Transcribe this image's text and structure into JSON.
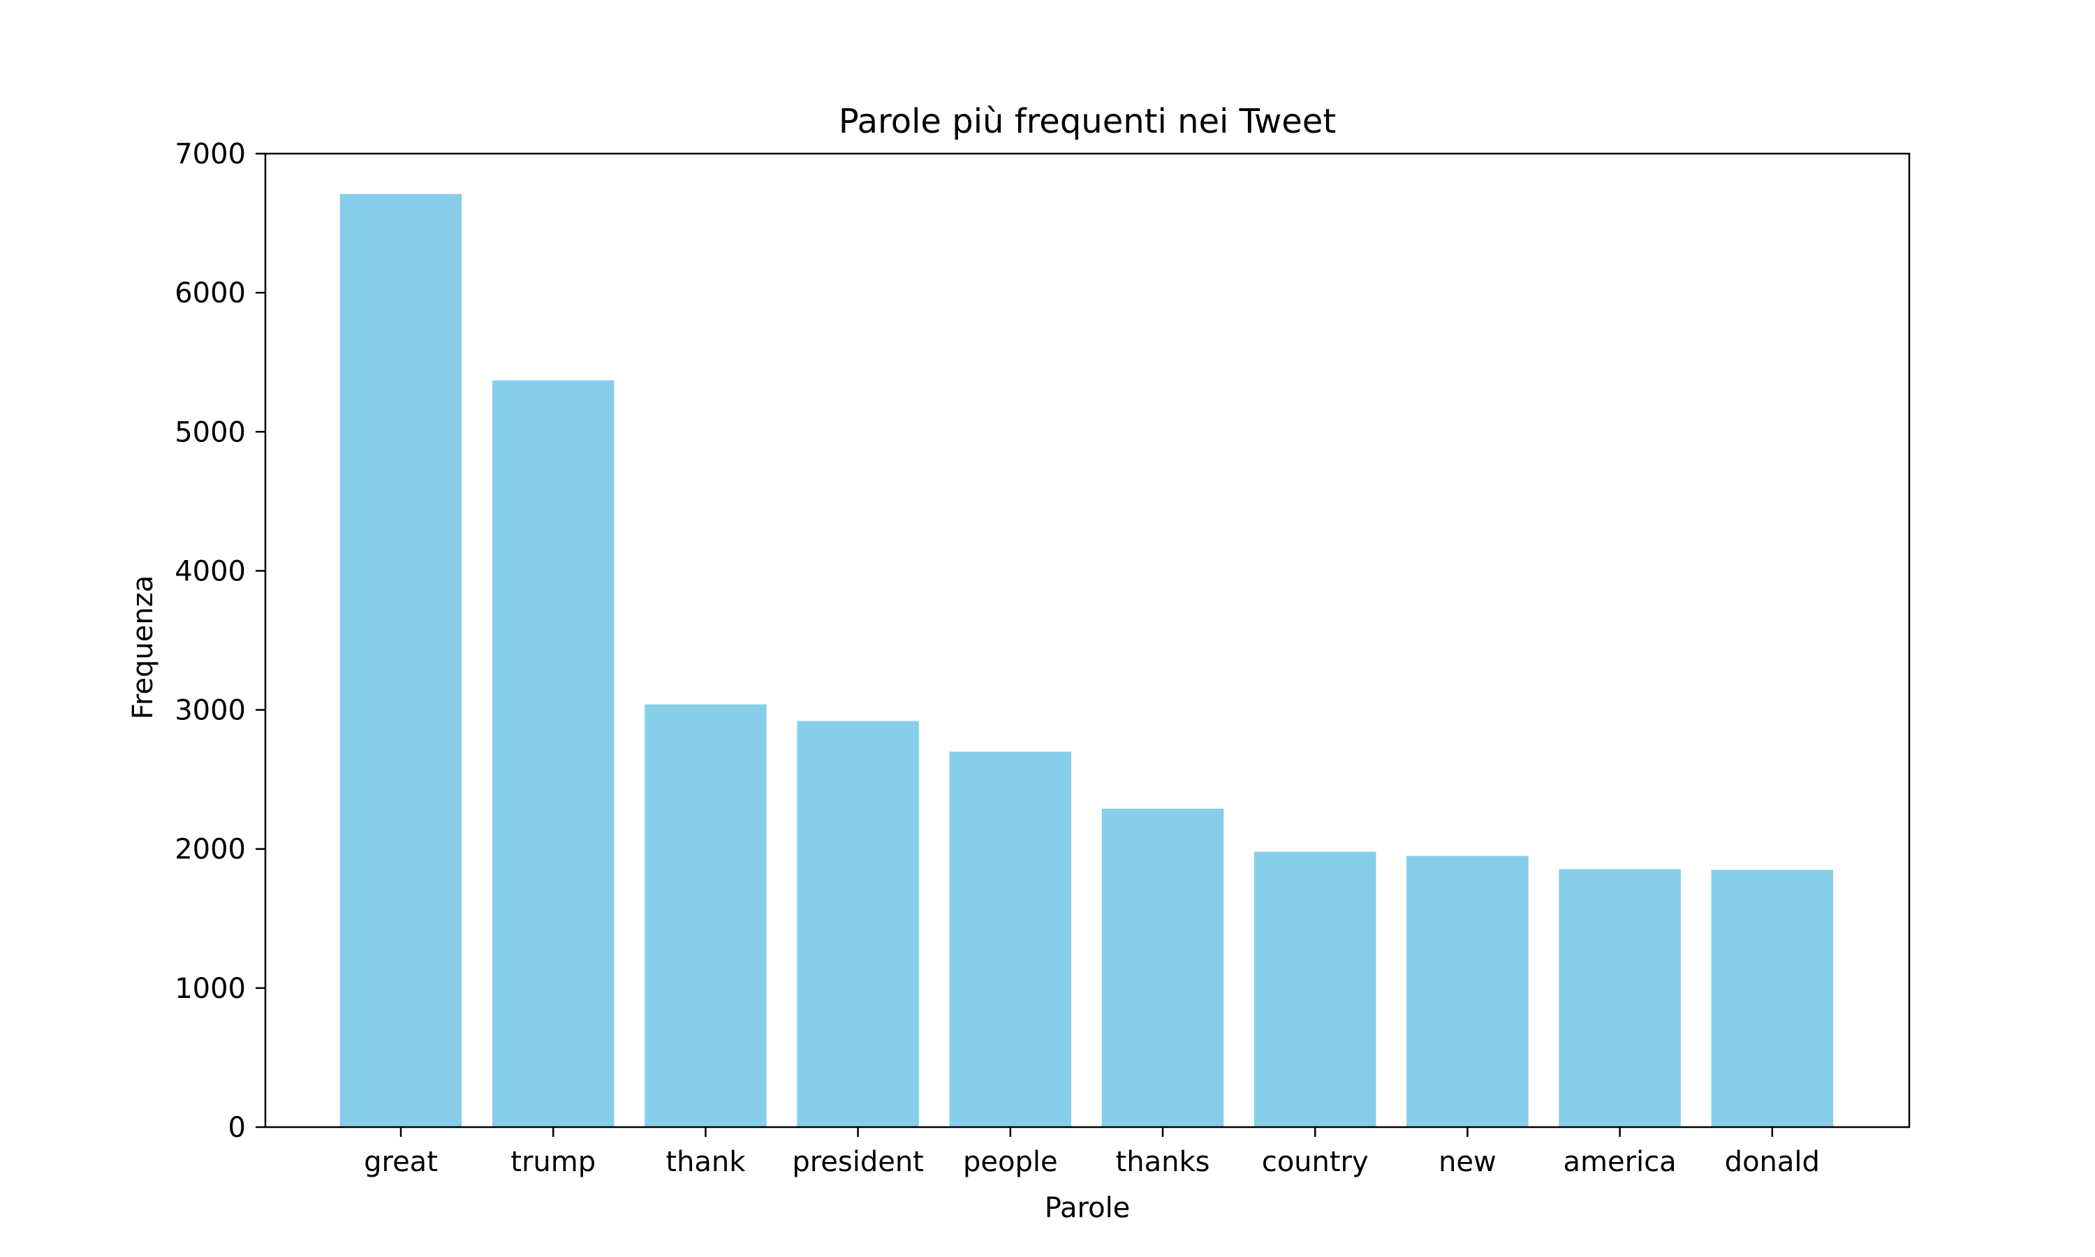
{
  "chart_data": {
    "type": "bar",
    "title": "Parole più frequenti nei Tweet",
    "xlabel": "Parole",
    "ylabel": "Frequenza",
    "categories": [
      "great",
      "trump",
      "thank",
      "president",
      "people",
      "thanks",
      "country",
      "new",
      "america",
      "donald"
    ],
    "values": [
      6710,
      5370,
      3040,
      2920,
      2700,
      2290,
      1980,
      1950,
      1855,
      1850
    ],
    "ylim": [
      0,
      7000
    ],
    "yticks": [
      0,
      1000,
      2000,
      3000,
      4000,
      5000,
      6000,
      7000
    ],
    "grid": false,
    "legend": "none",
    "bar_color": "#87CEEB"
  }
}
